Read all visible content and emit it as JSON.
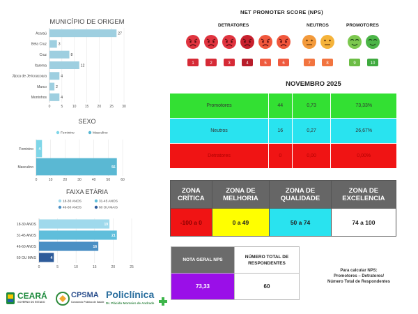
{
  "chart_data": [
    {
      "type": "bar",
      "orientation": "horizontal",
      "title": "MUNICÍPIO DE ORIGEM",
      "categories": [
        "Acaraú",
        "Bela Cruz",
        "Cruz",
        "Itarema",
        "Jijoca de Jericoacoara",
        "Marco",
        "Morrinhos"
      ],
      "values": [
        27,
        3,
        8,
        12,
        4,
        2,
        4
      ],
      "xlim": [
        0,
        30
      ],
      "xticks": [
        "0",
        "5",
        "10",
        "15",
        "20",
        "25",
        "30"
      ],
      "color": "#9ecfe0"
    },
    {
      "type": "bar",
      "orientation": "horizontal",
      "title": "SEXO",
      "legend": [
        "Feminino",
        "Masculino"
      ],
      "legend_colors": [
        "#7fd6e8",
        "#5ab8d3"
      ],
      "categories": [
        "Feminino",
        "Masculino"
      ],
      "values": [
        4,
        56
      ],
      "xlim": [
        0,
        60
      ],
      "xticks": [
        "0",
        "10",
        "20",
        "30",
        "40",
        "50",
        "60"
      ],
      "colors": [
        "#7fd6e8",
        "#5ab8d3"
      ]
    },
    {
      "type": "bar",
      "orientation": "horizontal",
      "title": "FAIXA ETÁRIA",
      "legend": [
        "18-30 ANOS",
        "31-45 ANOS",
        "46-60 ANOS",
        "60 OU MAIS"
      ],
      "legend_colors": [
        "#9fd9ec",
        "#5fbedb",
        "#4a8fc4",
        "#2d5b9a"
      ],
      "categories": [
        "18-30 ANOS",
        "31-45 ANOS",
        "46-60 ANOS",
        "60 OU MAIS"
      ],
      "values": [
        19,
        21,
        16,
        4
      ],
      "xlim": [
        0,
        25
      ],
      "xticks": [
        "0",
        "5",
        "10",
        "15",
        "20",
        "25"
      ],
      "colors": [
        "#9fd9ec",
        "#5fbedb",
        "#4a8fc4",
        "#2d5b9a"
      ]
    }
  ],
  "nps": {
    "title": "NET PROMOTER SCORE (NPS)",
    "groups": {
      "detratores": "DETRATORES",
      "neutros": "NEUTROS",
      "promotores": "PROMOTORES"
    },
    "scores": [
      {
        "label": "1",
        "color": "#d62a36",
        "face": "#e0343f"
      },
      {
        "label": "2",
        "color": "#d62a36",
        "face": "#e0343f"
      },
      {
        "label": "3",
        "color": "#d62a36",
        "face": "#e0343f"
      },
      {
        "label": "4",
        "color": "#b81d2b",
        "face": "#c8202e"
      },
      {
        "label": "5",
        "color": "#ef5b3f",
        "face": "#f0573c"
      },
      {
        "label": "6",
        "color": "#ef5b3f",
        "face": "#f0573c"
      },
      {
        "label": "7",
        "color": "#f2743f",
        "face": "#f39a3b"
      },
      {
        "label": "8",
        "color": "#f2743f",
        "face": "#f5b33a"
      },
      {
        "label": "9",
        "color": "#6cbd45",
        "face": "#7cc84f"
      },
      {
        "label": "10",
        "color": "#3faa3f",
        "face": "#4cb548"
      }
    ]
  },
  "month": "NOVEMBRO 2025",
  "summary_table": [
    {
      "label": "Promotores",
      "count": "44",
      "ratio": "0,73",
      "percent": "73,33%",
      "color": "#33e033"
    },
    {
      "label": "Neutros",
      "count": "16",
      "ratio": "0,27",
      "percent": "26,67%",
      "color": "#29e3ef"
    },
    {
      "label": "Detratores",
      "count": "0",
      "ratio": "0,00",
      "percent": "0,00%",
      "color": "#f01414"
    }
  ],
  "zones": [
    {
      "title": "ZONA CRÍTICA",
      "range": "-100 a 0",
      "color": "#f01414"
    },
    {
      "title": "ZONA DE MELHORIA",
      "range": "0 a 49",
      "color": "#ffff00"
    },
    {
      "title": "ZONA DE QUALIDADE",
      "range": "50 a 74",
      "color": "#29e3ef"
    },
    {
      "title": "ZONA DE EXCELENCIA",
      "range": "74 a 100",
      "color": "#ffffff"
    }
  ],
  "nota_geral": {
    "label": "NOTA GERAL NPS",
    "value": "73,33",
    "total_label": "NÚMERO TOTAL DE RESPONDENTES",
    "total_value": "60",
    "color": "#9a0fe8"
  },
  "formula": {
    "line1": "Para calcular NPS:",
    "line2": "Promotores – Detratores/",
    "line3": "Número Total de Respondentes"
  },
  "logos": {
    "ceara": "CEARÁ",
    "ceara_sub": "GOVERNO DO ESTADO",
    "cpsma": "CPSMA",
    "cpsma_sub": "Consórcio Público de Saúde",
    "policlinica": "Policlínica",
    "policlinica_sub": "Dr. Plácido Monteiro de Andrade"
  }
}
